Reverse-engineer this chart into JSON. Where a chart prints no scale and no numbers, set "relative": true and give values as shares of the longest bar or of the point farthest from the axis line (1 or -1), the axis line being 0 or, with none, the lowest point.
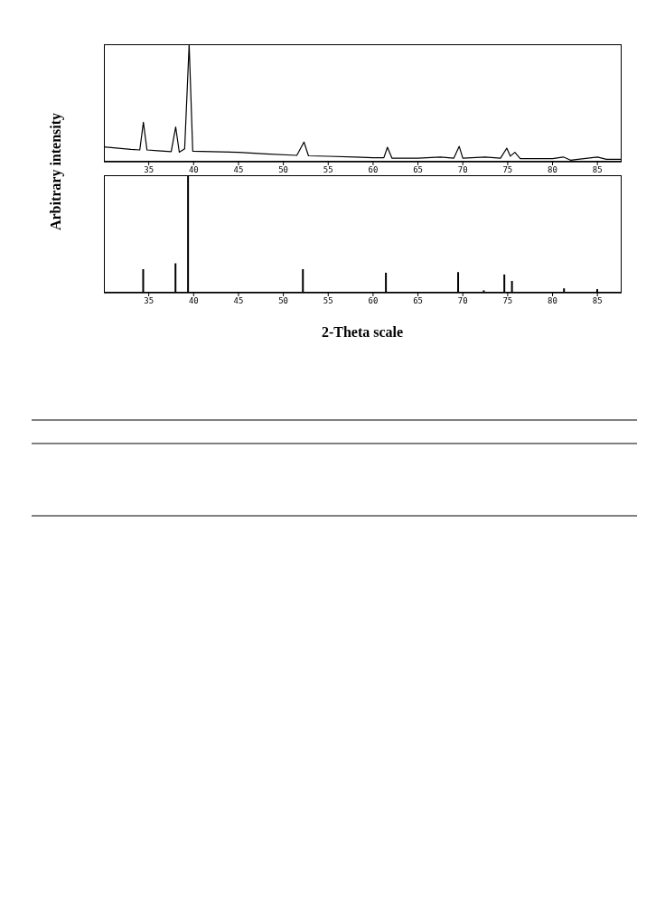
{
  "chart_data": [
    {
      "type": "line",
      "ylabel": "Arbitrary intensity",
      "relative": true,
      "xlim": [
        30,
        87.7
      ],
      "xticks": [
        35,
        40,
        45,
        50,
        55,
        60,
        65,
        70,
        75,
        80,
        85
      ],
      "tick_labels": "x",
      "series": [
        {
          "color": "#000000",
          "x": [
            30,
            33,
            34,
            34.4,
            34.8,
            36,
            37.5,
            38,
            38.4,
            39,
            39.5,
            39.9,
            42,
            45,
            48,
            51.5,
            52.3,
            52.8,
            55,
            58,
            60,
            61.2,
            61.6,
            62.1,
            65,
            67.5,
            69,
            69.6,
            70,
            72.5,
            74.2,
            74.9,
            75.3,
            75.8,
            76.4,
            80,
            81.2,
            82,
            85,
            86,
            87.7
          ],
          "values": [
            0.126,
            0.105,
            0.1,
            0.336,
            0.1,
            0.094,
            0.086,
            0.296,
            0.081,
            0.11,
            1,
            0.09,
            0.086,
            0.08,
            0.067,
            0.054,
            0.167,
            0.05,
            0.046,
            0.04,
            0.034,
            0.034,
            0.123,
            0.03,
            0.03,
            0.04,
            0.03,
            0.13,
            0.03,
            0.04,
            0.03,
            0.115,
            0.047,
            0.08,
            0.026,
            0.026,
            0.04,
            0.013,
            0.04,
            0.02,
            0.02
          ]
        }
      ]
    },
    {
      "type": "bar",
      "xlabel": "2-Theta scale",
      "relative": true,
      "xlim": [
        30,
        87.7
      ],
      "xticks": [
        35,
        40,
        45,
        50,
        55,
        60,
        65,
        70,
        75,
        80,
        85
      ],
      "tick_labels": "x",
      "color": "#000000",
      "x": [
        34.4,
        38,
        39.4,
        52.2,
        61.45,
        69.5,
        72.36,
        74.65,
        75.5,
        81.3,
        85
      ],
      "values": [
        0.2,
        0.25,
        1,
        0.2,
        0.17,
        0.175,
        0.02,
        0.155,
        0.1,
        0.037,
        0.03
      ]
    }
  ]
}
